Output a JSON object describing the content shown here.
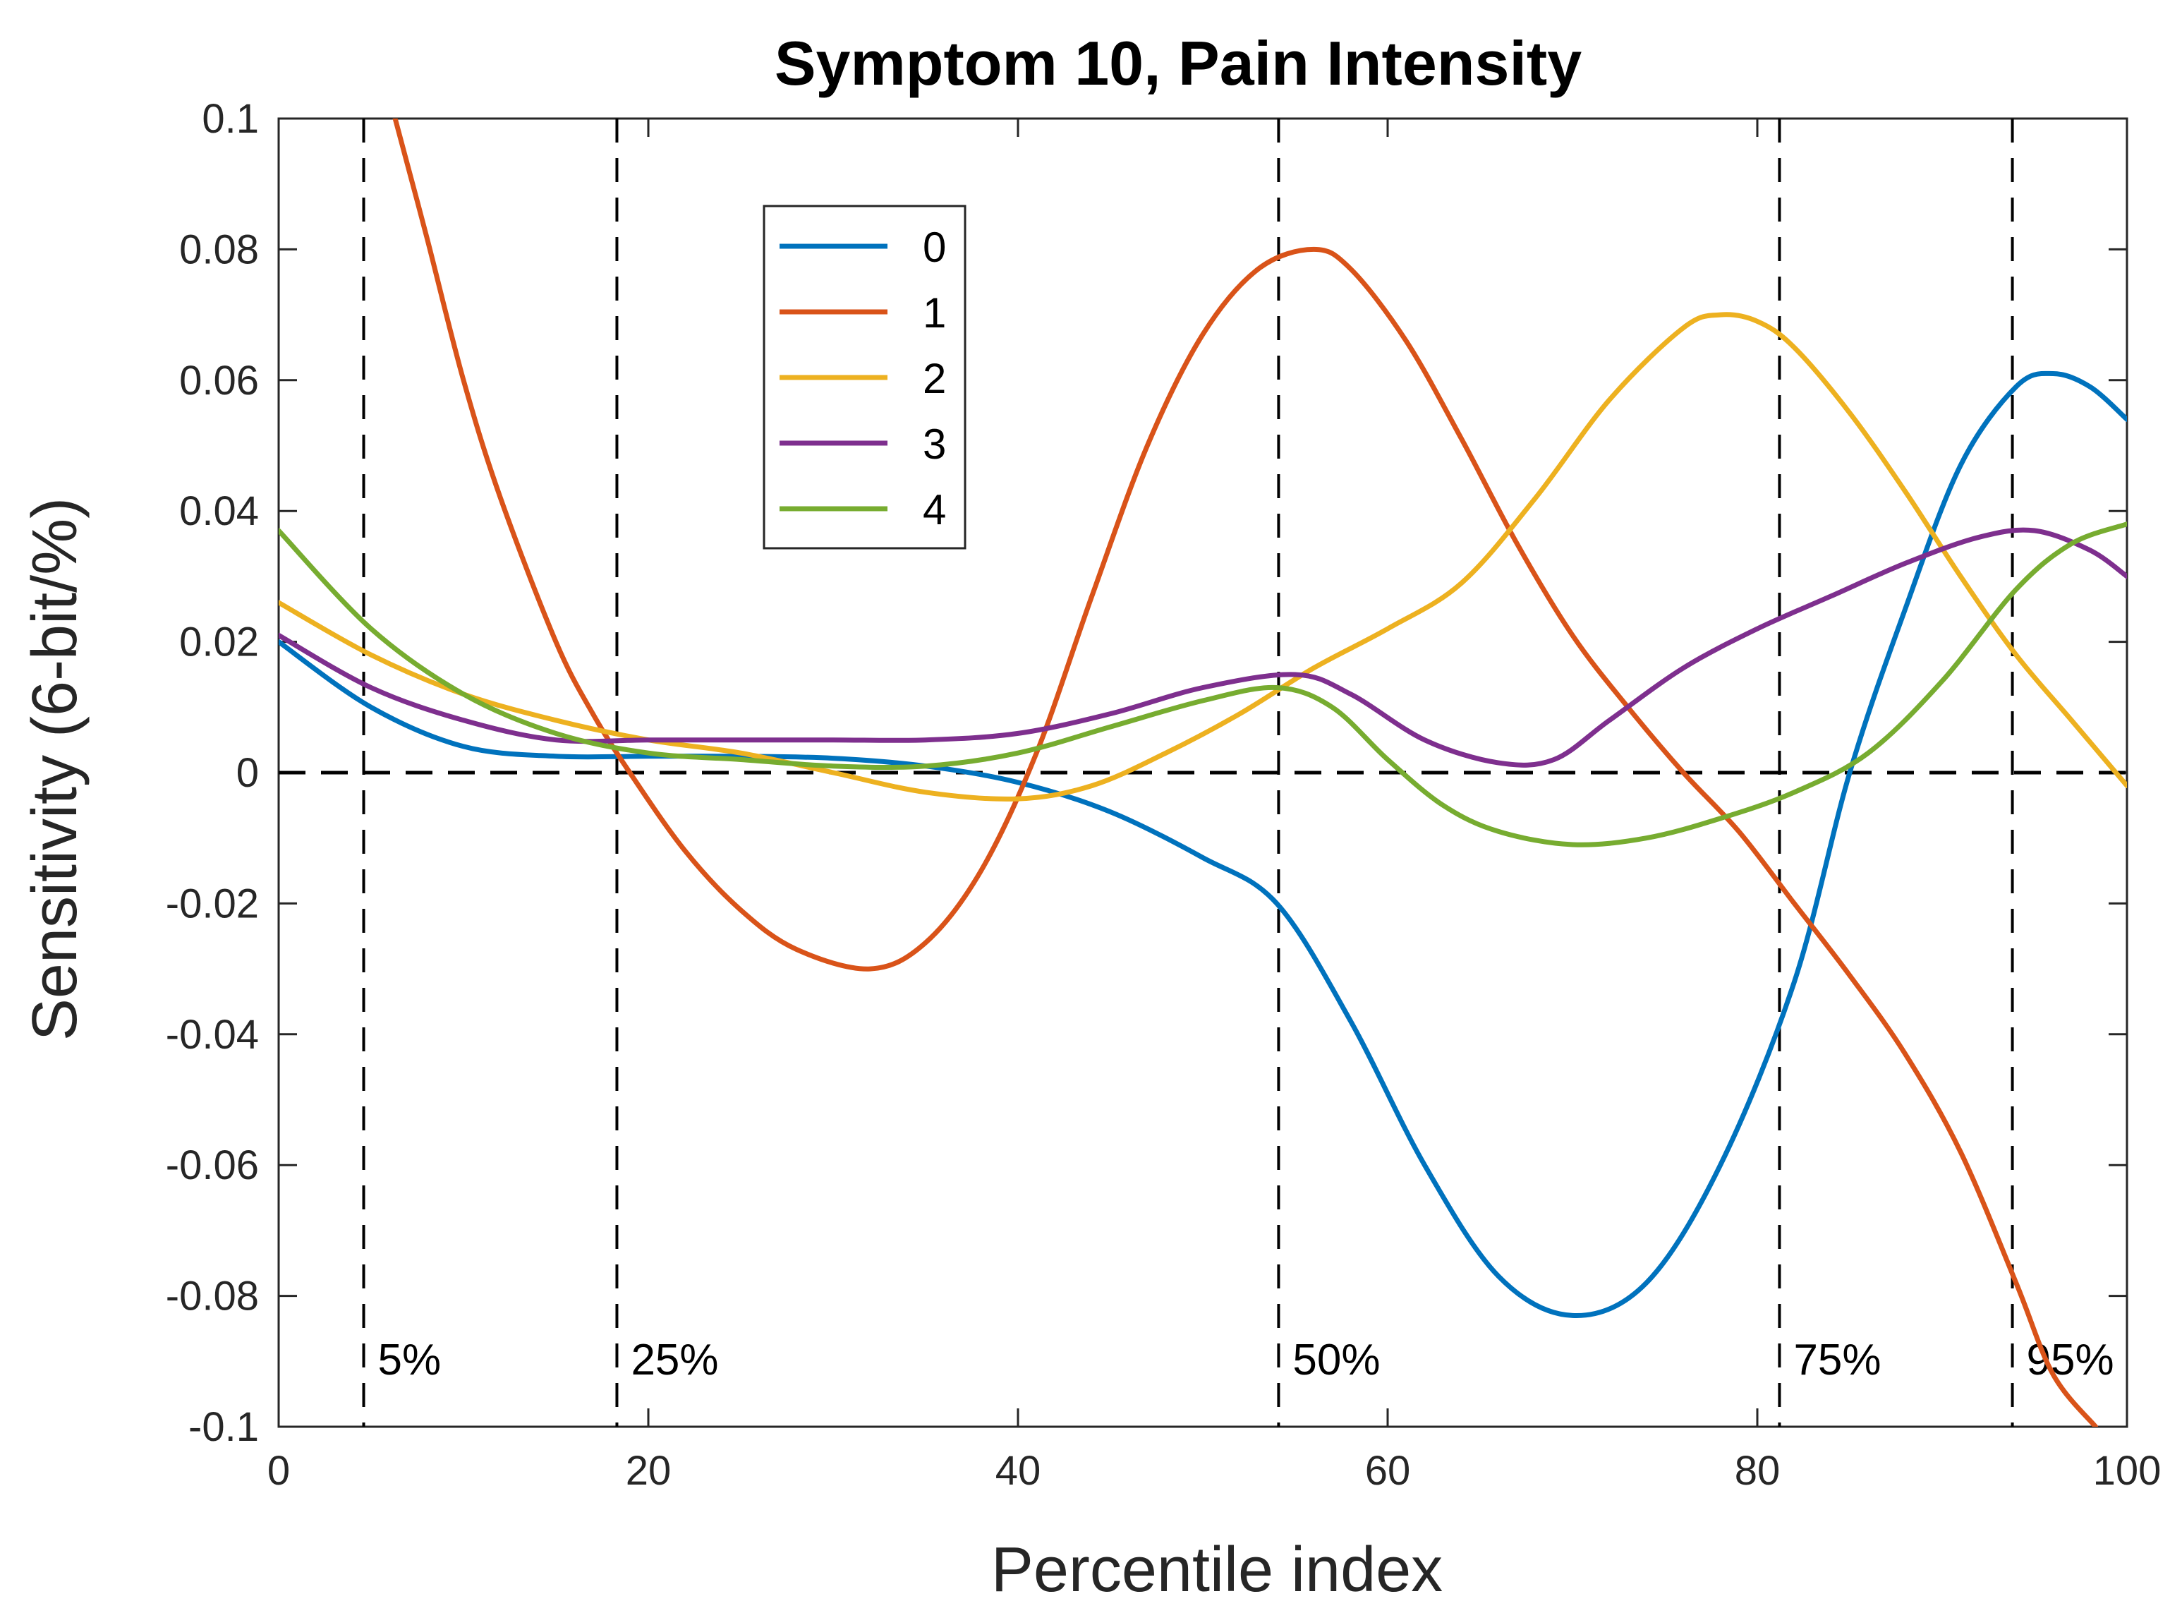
{
  "chart_data": {
    "type": "line",
    "title": "Symptom 10, Pain Intensity",
    "xlabel": "Percentile index",
    "ylabel": "Sensitivity (6-bit/%)",
    "xlim": [
      0,
      100
    ],
    "ylim": [
      -0.1,
      0.1
    ],
    "xticks": [
      0,
      20,
      40,
      60,
      80,
      100
    ],
    "xtick_labels": [
      "0",
      "20",
      "40",
      "60",
      "80",
      "100"
    ],
    "yticks": [
      -0.1,
      -0.08,
      -0.06,
      -0.04,
      -0.02,
      0,
      0.02,
      0.04,
      0.06,
      0.08,
      0.1
    ],
    "ytick_labels": [
      "-0.1",
      "-0.08",
      "-0.06",
      "-0.04",
      "-0.02",
      "0",
      "0.02",
      "0.04",
      "0.06",
      "0.08",
      "0.1"
    ],
    "grid": false,
    "legend_position": "upper-center-left",
    "reference_lines": {
      "horizontal_zero": 0,
      "percentile_markers": [
        {
          "x": 4.6,
          "label": "5%"
        },
        {
          "x": 18.3,
          "label": "25%"
        },
        {
          "x": 54.1,
          "label": "50%"
        },
        {
          "x": 81.2,
          "label": "75%"
        },
        {
          "x": 93.8,
          "label": "95%"
        }
      ]
    },
    "series": [
      {
        "name": "0",
        "color": "#0072BD",
        "x": [
          0,
          5,
          10,
          15,
          20,
          25,
          30,
          35,
          40,
          45,
          50,
          54,
          58,
          62,
          66,
          70,
          74,
          78,
          82,
          85,
          88,
          91,
          94,
          96,
          98,
          100
        ],
        "y": [
          0.02,
          0.01,
          0.004,
          0.0025,
          0.0025,
          0.0025,
          0.0022,
          0.001,
          -0.0015,
          -0.006,
          -0.013,
          -0.02,
          -0.038,
          -0.06,
          -0.077,
          -0.083,
          -0.078,
          -0.06,
          -0.032,
          0.0,
          0.025,
          0.047,
          0.059,
          0.061,
          0.059,
          0.054
        ]
      },
      {
        "name": "1",
        "color": "#D95319",
        "x": [
          6.3,
          8,
          10,
          12,
          15,
          17,
          19,
          22,
          25,
          28,
          32,
          35,
          38,
          41,
          44,
          47,
          50,
          53,
          56,
          58,
          61,
          64,
          67,
          70,
          73,
          76,
          79,
          82,
          85,
          88,
          91,
          94,
          96,
          98.3
        ],
        "y": [
          0.1,
          0.082,
          0.06,
          0.042,
          0.02,
          0.009,
          0.0,
          -0.012,
          -0.021,
          -0.027,
          -0.03,
          -0.026,
          -0.015,
          0.003,
          0.027,
          0.05,
          0.067,
          0.077,
          0.08,
          0.077,
          0.066,
          0.051,
          0.035,
          0.021,
          0.01,
          0.0,
          -0.009,
          -0.02,
          -0.031,
          -0.043,
          -0.058,
          -0.078,
          -0.092,
          -0.1
        ]
      },
      {
        "name": "2",
        "color": "#EDB120",
        "x": [
          0,
          5,
          10,
          15,
          20,
          25,
          30,
          35,
          40,
          44,
          48,
          52,
          56,
          60,
          64,
          68,
          72,
          76,
          78,
          80,
          82,
          85,
          88,
          91,
          94,
          97,
          100
        ],
        "y": [
          0.026,
          0.018,
          0.012,
          0.008,
          0.005,
          0.003,
          0.0,
          -0.003,
          -0.004,
          -0.002,
          0.003,
          0.009,
          0.016,
          0.022,
          0.029,
          0.042,
          0.057,
          0.068,
          0.07,
          0.069,
          0.065,
          0.055,
          0.043,
          0.03,
          0.018,
          0.008,
          -0.002
        ]
      },
      {
        "name": "3",
        "color": "#7E2F8E",
        "x": [
          0,
          5,
          10,
          15,
          20,
          25,
          30,
          35,
          40,
          45,
          50,
          55,
          58,
          62,
          66,
          69,
          72,
          76,
          80,
          84,
          88,
          92,
          95,
          98,
          100
        ],
        "y": [
          0.021,
          0.013,
          0.008,
          0.005,
          0.005,
          0.005,
          0.005,
          0.005,
          0.006,
          0.009,
          0.013,
          0.015,
          0.012,
          0.005,
          0.0015,
          0.002,
          0.008,
          0.016,
          0.022,
          0.027,
          0.032,
          0.036,
          0.037,
          0.034,
          0.03
        ]
      },
      {
        "name": "4",
        "color": "#77AC30",
        "x": [
          0,
          5,
          10,
          15,
          20,
          25,
          30,
          35,
          40,
          45,
          50,
          54,
          57,
          60,
          63,
          66,
          70,
          74,
          78,
          82,
          86,
          90,
          94,
          97,
          100
        ],
        "y": [
          0.037,
          0.022,
          0.012,
          0.006,
          0.003,
          0.002,
          0.001,
          0.001,
          0.003,
          0.007,
          0.011,
          0.013,
          0.01,
          0.002,
          -0.005,
          -0.009,
          -0.011,
          -0.01,
          -0.007,
          -0.003,
          0.003,
          0.014,
          0.028,
          0.035,
          0.038
        ]
      }
    ]
  }
}
